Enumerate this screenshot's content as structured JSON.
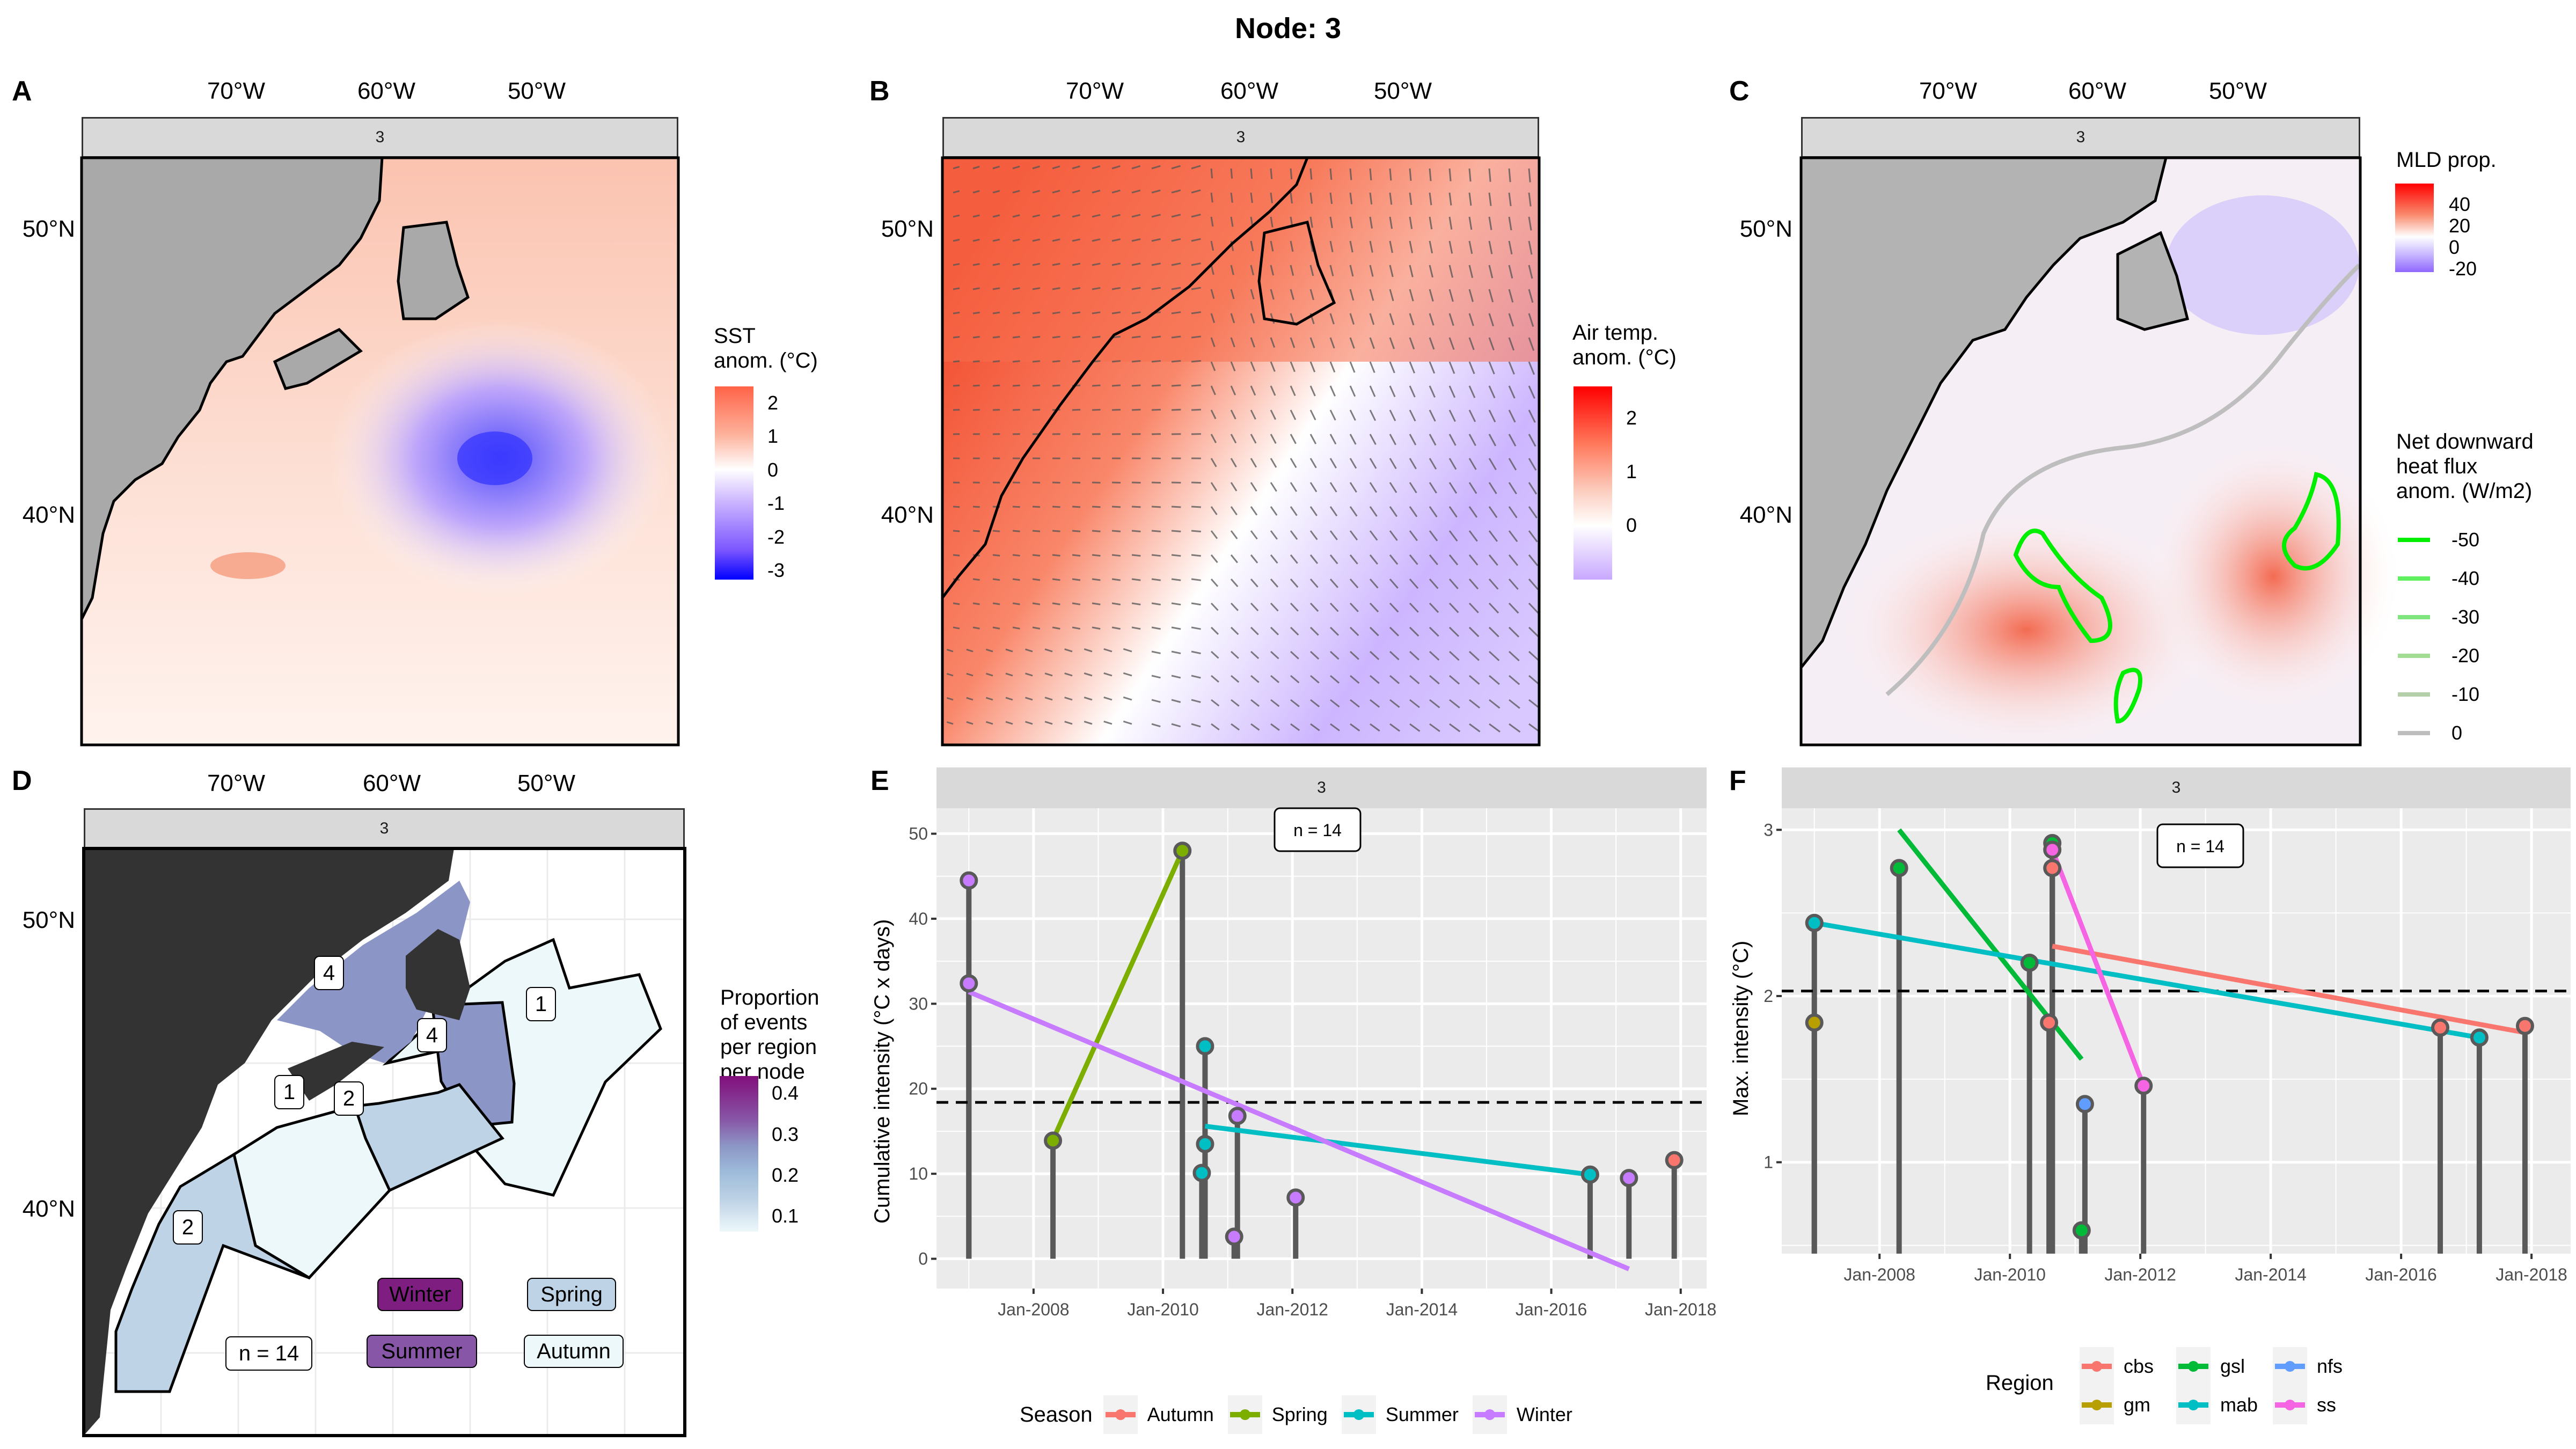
{
  "title": "Node: 3",
  "facet_label": "3",
  "lon_ticks": [
    "70°W",
    "60°W",
    "50°W"
  ],
  "lat_ticks": [
    "50°N",
    "40°N"
  ],
  "panels": {
    "A": {
      "letter": "A",
      "legend_title_lines": [
        "SST",
        "anom. (°C)"
      ],
      "legend_ticks": [
        "2",
        "1",
        "0",
        "-1",
        "-2",
        "-3"
      ],
      "legend_colors": {
        "high": "#ff6347",
        "mid": "#ffffff",
        "low": "#0000ff"
      }
    },
    "B": {
      "letter": "B",
      "legend_title_lines": [
        "Air temp.",
        "anom. (°C)"
      ],
      "legend_ticks": [
        "2",
        "1",
        "0"
      ],
      "legend_colors": {
        "high": "#ff0000",
        "mid": "#ffffff",
        "low": "#c8a8ff"
      }
    },
    "C": {
      "letter": "C",
      "legend1_title": "MLD prop.",
      "legend1_ticks": [
        "40",
        "20",
        "0",
        "-20"
      ],
      "legend2_title_lines": [
        "Net downward",
        "heat flux",
        "anom. (W/m2)"
      ],
      "legend2_items": [
        {
          "label": "-50",
          "color": "#00ee00"
        },
        {
          "label": "-40",
          "color": "#5ef05e"
        },
        {
          "label": "-30",
          "color": "#7fe67f"
        },
        {
          "label": "-20",
          "color": "#a3dc93"
        },
        {
          "label": "-10",
          "color": "#b5cfa8"
        },
        {
          "label": "0",
          "color": "#bebebe"
        }
      ]
    },
    "D": {
      "letter": "D",
      "legend_title_lines": [
        "Proportion",
        "of events",
        "per region",
        "per node"
      ],
      "legend_ticks": [
        "0.4",
        "0.3",
        "0.2",
        "0.1"
      ],
      "region_labels": [
        "4",
        "4",
        "1",
        "1",
        "2",
        "2"
      ],
      "n_label": "n = 14",
      "season_boxes": [
        {
          "label": "Winter",
          "color": "#7e1e80",
          "text_color": "#000000"
        },
        {
          "label": "Spring",
          "color": "#bfd3e6",
          "text_color": "#000000"
        },
        {
          "label": "Summer",
          "color": "#8856a7",
          "text_color": "#000000"
        },
        {
          "label": "Autumn",
          "color": "#edf8fb",
          "text_color": "#000000"
        }
      ]
    },
    "E": {
      "letter": "E"
    },
    "F": {
      "letter": "F"
    }
  },
  "chart_data": [
    {
      "id": "E",
      "type": "scatter",
      "subtype": "lollipop with linear trend lines per group",
      "title": "3",
      "xlabel": "",
      "ylabel": "Cumulative intensity (°C x days)",
      "x_ticks": [
        "Jan-2008",
        "Jan-2010",
        "Jan-2012",
        "Jan-2014",
        "Jan-2016",
        "Jan-2018"
      ],
      "y_ticks": [
        0,
        10,
        20,
        30,
        40,
        50
      ],
      "xlim": [
        2006.5,
        2018.4
      ],
      "ylim": [
        -3.5,
        53
      ],
      "annotation": "n = 14",
      "hline": 18.4,
      "legend_title": "Season",
      "legend_position": "bottom",
      "series": [
        {
          "name": "Autumn",
          "color": "#f8766d",
          "points": [
            [
              2017.9,
              11.6
            ]
          ]
        },
        {
          "name": "Spring",
          "color": "#7cae00",
          "points": [
            [
              2008.3,
              13.9
            ],
            [
              2010.3,
              48.0
            ]
          ],
          "trend": [
            [
              2008.3,
              14.0
            ],
            [
              2010.3,
              48.0
            ]
          ]
        },
        {
          "name": "Summer",
          "color": "#00bfc4",
          "points": [
            [
              2010.65,
              25.0
            ],
            [
              2010.65,
              13.5
            ],
            [
              2010.6,
              10.1
            ],
            [
              2016.6,
              9.9
            ]
          ],
          "trend": [
            [
              2010.65,
              15.6
            ],
            [
              2016.6,
              9.9
            ]
          ]
        },
        {
          "name": "Winter",
          "color": "#c77cff",
          "points": [
            [
              2007.0,
              44.5
            ],
            [
              2007.0,
              32.4
            ],
            [
              2011.15,
              16.8
            ],
            [
              2011.1,
              2.6
            ],
            [
              2012.05,
              7.2
            ],
            [
              2017.2,
              9.5
            ]
          ],
          "trend": [
            [
              2007.0,
              31.4
            ],
            [
              2017.2,
              -1.2
            ]
          ]
        }
      ]
    },
    {
      "id": "F",
      "type": "scatter",
      "subtype": "lollipop with linear trend lines per group",
      "title": "3",
      "xlabel": "",
      "ylabel": "Max. intensity (°C)",
      "x_ticks": [
        "Jan-2008",
        "Jan-2010",
        "Jan-2012",
        "Jan-2014",
        "Jan-2016",
        "Jan-2018"
      ],
      "y_ticks": [
        1,
        2,
        3
      ],
      "xlim": [
        2006.5,
        2018.6
      ],
      "ylim": [
        0.45,
        3.13
      ],
      "annotation": "n = 14",
      "hline": 2.03,
      "legend_title": "Region",
      "legend_position": "bottom",
      "series": [
        {
          "name": "cbs",
          "color": "#f8766d",
          "points": [
            [
              2010.65,
              2.77
            ],
            [
              2010.6,
              1.84
            ],
            [
              2016.6,
              1.81
            ],
            [
              2017.9,
              1.82
            ]
          ],
          "trend": [
            [
              2010.65,
              2.3
            ],
            [
              2017.9,
              1.78
            ]
          ]
        },
        {
          "name": "gm",
          "color": "#b79f00",
          "points": [
            [
              2007.0,
              1.84
            ]
          ]
        },
        {
          "name": "gsl",
          "color": "#00ba38",
          "points": [
            [
              2008.3,
              2.77
            ],
            [
              2010.3,
              2.2
            ],
            [
              2010.65,
              2.92
            ],
            [
              2011.1,
              0.59
            ]
          ],
          "trend": [
            [
              2008.3,
              3.0
            ],
            [
              2011.1,
              1.62
            ]
          ]
        },
        {
          "name": "mab",
          "color": "#00bfc4",
          "points": [
            [
              2007.0,
              2.44
            ],
            [
              2017.2,
              1.75
            ]
          ],
          "trend": [
            [
              2007.0,
              2.44
            ],
            [
              2017.2,
              1.75
            ]
          ]
        },
        {
          "name": "nfs",
          "color": "#619cff",
          "points": [
            [
              2011.15,
              1.35
            ]
          ]
        },
        {
          "name": "ss",
          "color": "#f564e3",
          "points": [
            [
              2010.65,
              2.88
            ],
            [
              2012.05,
              1.46
            ]
          ],
          "trend": [
            [
              2010.65,
              2.88
            ],
            [
              2012.05,
              1.46
            ]
          ]
        }
      ]
    }
  ]
}
